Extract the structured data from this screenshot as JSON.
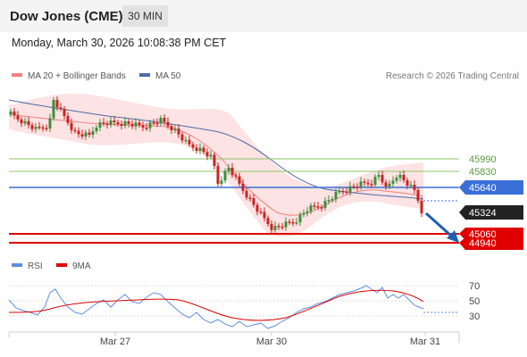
{
  "header": {
    "title": "Dow Jones (CME)",
    "timeframe_label": "30 MIN"
  },
  "datetime": "Monday, March 30, 2026 10:08:38 PM CET",
  "legend": {
    "bb_label": "MA 20 + Bollinger Bands",
    "ma50_label": "MA 50",
    "rsi_label": "RSI",
    "rsi_ma_label": "9MA"
  },
  "credit": "Research © 2026 Trading Central",
  "colors": {
    "bb_fill": "#fde3e3",
    "ma20": "#f08080",
    "ma50": "#4a6ba8",
    "candle_up": "#3a8f3a",
    "candle_down": "#cc2222",
    "res_line": "#8cc46a",
    "pivot_line": "#3a6fd8",
    "sup_line": "#e00000",
    "current_tag": "#222222",
    "arrow": "#1f5fb0",
    "rsi": "#5b8fe0",
    "rsi_ma": "#e00000"
  },
  "levels": {
    "resistance": [
      {
        "value": 45990,
        "label": "45990"
      },
      {
        "value": 45830,
        "label": "45830"
      }
    ],
    "pivot": {
      "value": 45640,
      "label": "45640"
    },
    "current": {
      "value": 45324,
      "label": "45324"
    },
    "support": [
      {
        "value": 45060,
        "label": "45060"
      },
      {
        "value": 44940,
        "label": "44940"
      }
    ]
  },
  "rsi_axis": {
    "ticks": [
      {
        "value": 70,
        "label": "70"
      },
      {
        "value": 50,
        "label": "50"
      },
      {
        "value": 30,
        "label": "30"
      }
    ]
  },
  "x_axis": {
    "labels": [
      "Mar 27",
      "Mar 30",
      "Mar 31"
    ]
  }
}
